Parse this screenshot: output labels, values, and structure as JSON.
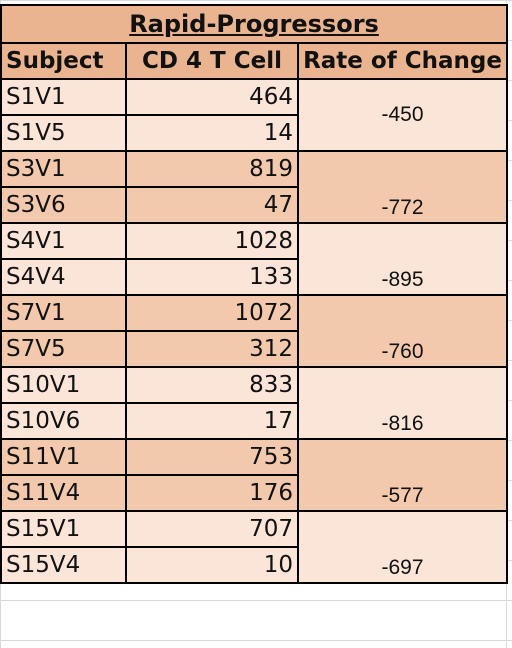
{
  "title": "Rapid-Progressors",
  "headers": {
    "subject": "Subject",
    "cd4": "CD 4 T Cell",
    "rate": "Rate of Change"
  },
  "groups": [
    {
      "rows": [
        {
          "subject": "S1V1",
          "cd4": "464"
        },
        {
          "subject": "S1V5",
          "cd4": "14"
        }
      ],
      "rate": "-450",
      "shade": "light"
    },
    {
      "rows": [
        {
          "subject": "S3V1",
          "cd4": "819"
        },
        {
          "subject": "S3V6",
          "cd4": "47"
        }
      ],
      "rate": "-772",
      "shade": "dark"
    },
    {
      "rows": [
        {
          "subject": "S4V1",
          "cd4": "1028"
        },
        {
          "subject": "S4V4",
          "cd4": "133"
        }
      ],
      "rate": "-895",
      "shade": "light"
    },
    {
      "rows": [
        {
          "subject": "S7V1",
          "cd4": "1072"
        },
        {
          "subject": "S7V5",
          "cd4": "312"
        }
      ],
      "rate": "-760",
      "shade": "dark"
    },
    {
      "rows": [
        {
          "subject": "S10V1",
          "cd4": "833"
        },
        {
          "subject": "S10V6",
          "cd4": "17"
        }
      ],
      "rate": "-816",
      "shade": "light"
    },
    {
      "rows": [
        {
          "subject": "S11V1",
          "cd4": "753"
        },
        {
          "subject": "S11V4",
          "cd4": "176"
        }
      ],
      "rate": "-577",
      "shade": "dark"
    },
    {
      "rows": [
        {
          "subject": "S15V1",
          "cd4": "707"
        },
        {
          "subject": "S15V4",
          "cd4": "10"
        }
      ],
      "rate": "-697",
      "shade": "light"
    }
  ],
  "colors": {
    "header_fill": "#e9b48f",
    "light_fill": "#fbe5d8",
    "dark_fill": "#f3c9ad"
  }
}
